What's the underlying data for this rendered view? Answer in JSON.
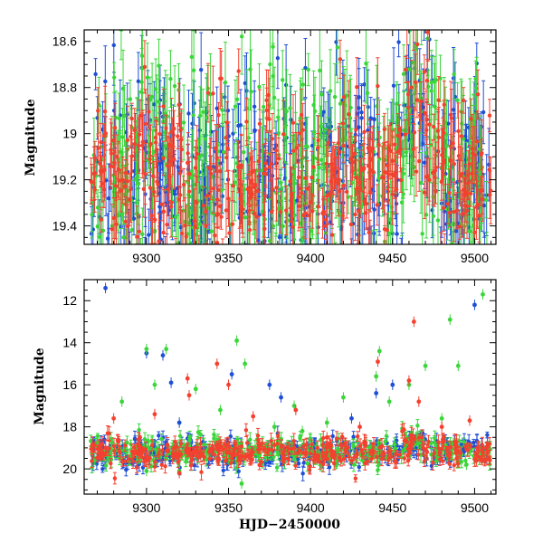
{
  "chart_data": [
    {
      "type": "scatter",
      "panel": "top",
      "title": "",
      "xlabel": "",
      "ylabel": "Magnitude",
      "xlim": [
        9262,
        9513
      ],
      "ylim": [
        19.48,
        18.55
      ],
      "y_inverted": true,
      "xticks": [
        9300,
        9350,
        9400,
        9450,
        9500
      ],
      "xtick_labels": [
        "9300",
        "9350",
        "9400",
        "9450",
        "9500"
      ],
      "yticks": [
        18.6,
        18.8,
        19.0,
        19.2,
        19.4
      ],
      "ytick_labels": [
        "18.6",
        "18.8",
        "19",
        "19.2",
        "19.4"
      ],
      "series": [
        {
          "name": "blue",
          "color": "#1f4fd6",
          "baseline": 19.18,
          "scatter": 0.22,
          "errbar": 0.12
        },
        {
          "name": "green",
          "color": "#3ad63a",
          "baseline": 19.16,
          "scatter": 0.24,
          "errbar": 0.13
        },
        {
          "name": "red",
          "color": "#f4412f",
          "baseline": 19.18,
          "scatter": 0.16,
          "errbar": 0.1
        }
      ],
      "features": [
        {
          "description": "brightening bump",
          "x_range": [
            9440,
            9492
          ],
          "peak_x": 9465,
          "peak_mag": 18.85
        }
      ]
    },
    {
      "type": "scatter",
      "panel": "bottom",
      "title": "",
      "xlabel": "HJD−2450000",
      "ylabel": "Magnitude",
      "xlim": [
        9262,
        9513
      ],
      "ylim": [
        21.2,
        11.0
      ],
      "y_inverted": true,
      "xticks": [
        9300,
        9350,
        9400,
        9450,
        9500
      ],
      "xtick_labels": [
        "9300",
        "9350",
        "9400",
        "9450",
        "9500"
      ],
      "yticks": [
        12,
        14,
        16,
        18,
        20
      ],
      "ytick_labels": [
        "12",
        "14",
        "16",
        "18",
        "20"
      ],
      "series": [
        {
          "name": "blue",
          "color": "#1f4fd6",
          "outliers": [
            [
              9275,
              11.4
            ],
            [
              9300,
              14.5
            ],
            [
              9310,
              14.6
            ],
            [
              9315,
              15.9
            ],
            [
              9352,
              15.5
            ],
            [
              9375,
              16.0
            ],
            [
              9382,
              16.6
            ],
            [
              9425,
              17.6
            ],
            [
              9440,
              16.4
            ],
            [
              9450,
              16.0
            ],
            [
              9500,
              12.2
            ],
            [
              9320,
              17.8
            ]
          ]
        },
        {
          "name": "green",
          "color": "#3ad63a",
          "outliers": [
            [
              9285,
              16.8
            ],
            [
              9300,
              14.3
            ],
            [
              9305,
              16.0
            ],
            [
              9312,
              14.3
            ],
            [
              9355,
              13.9
            ],
            [
              9360,
              15.0
            ],
            [
              9345,
              17.2
            ],
            [
              9390,
              17.0
            ],
            [
              9395,
              18.2
            ],
            [
              9410,
              17.8
            ],
            [
              9420,
              16.6
            ],
            [
              9440,
              15.6
            ],
            [
              9442,
              14.4
            ],
            [
              9448,
              16.8
            ],
            [
              9460,
              16.0
            ],
            [
              9470,
              15.1
            ],
            [
              9480,
              17.6
            ],
            [
              9485,
              12.9
            ],
            [
              9490,
              15.1
            ],
            [
              9495,
              19.8
            ],
            [
              9505,
              11.7
            ],
            [
              9330,
              16.2
            ],
            [
              9378,
              18.0
            ],
            [
              9300,
              20.1
            ],
            [
              9358,
              20.7
            ],
            [
              9320,
              20.1
            ]
          ]
        },
        {
          "name": "red",
          "color": "#f4412f",
          "outliers": [
            [
              9280,
              17.6
            ],
            [
              9296,
              18.5
            ],
            [
              9305,
              17.4
            ],
            [
              9325,
              15.7
            ],
            [
              9326,
              16.5
            ],
            [
              9343,
              15.0
            ],
            [
              9350,
              16.0
            ],
            [
              9365,
              17.5
            ],
            [
              9391,
              17.2
            ],
            [
              9410,
              18.5
            ],
            [
              9430,
              18.0
            ],
            [
              9441,
              14.9
            ],
            [
              9460,
              15.8
            ],
            [
              9463,
              13.0
            ],
            [
              9466,
              16.8
            ],
            [
              9480,
              18.0
            ],
            [
              9497,
              17.7
            ],
            [
              9505,
              19.0
            ],
            [
              9320,
              20.2
            ]
          ]
        }
      ]
    }
  ]
}
